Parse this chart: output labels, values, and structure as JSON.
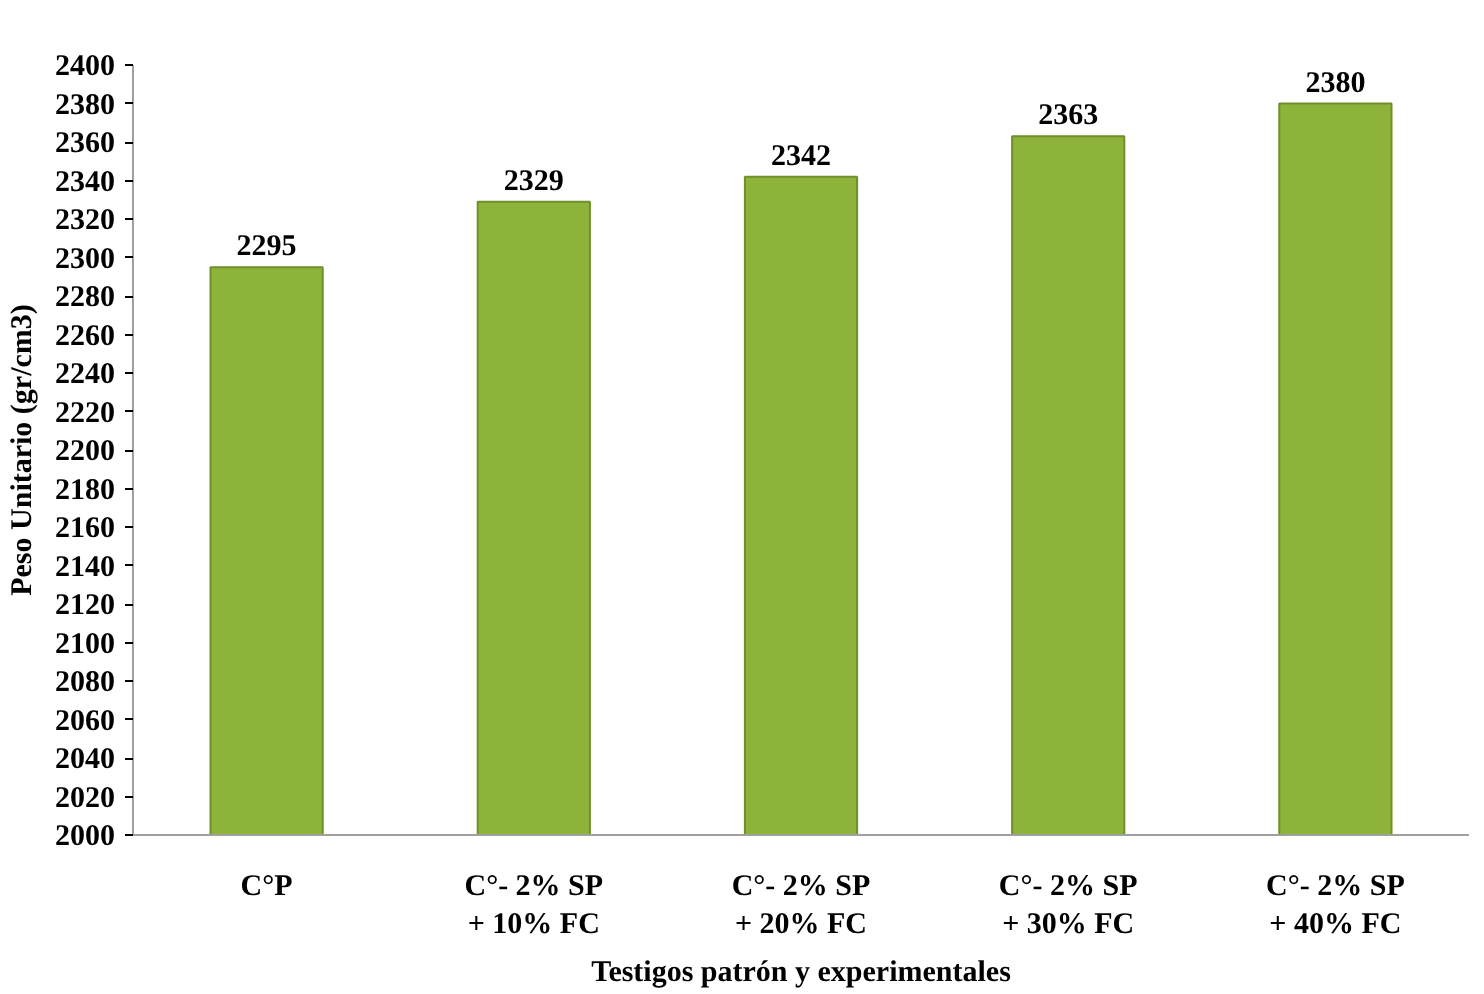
{
  "chart_data": {
    "type": "bar",
    "xlabel": "Testigos patrón y experimentales",
    "ylabel": "Peso Unitario (gr/cm3)",
    "categories": [
      "C°P",
      "C°- 2% SP\n+ 10% FC",
      "C°- 2% SP\n+ 20% FC",
      "C°- 2% SP\n+ 30% FC",
      "C°- 2% SP\n+ 40% FC"
    ],
    "values": [
      2295,
      2329,
      2342,
      2363,
      2380
    ],
    "color": "#8db33a",
    "ylim": [
      2000,
      2400
    ],
    "yticks": [
      2000,
      2020,
      2040,
      2060,
      2080,
      2100,
      2120,
      2140,
      2160,
      2180,
      2200,
      2220,
      2240,
      2260,
      2280,
      2300,
      2320,
      2340,
      2360,
      2380,
      2400
    ],
    "grid": false,
    "data_labels": true
  }
}
